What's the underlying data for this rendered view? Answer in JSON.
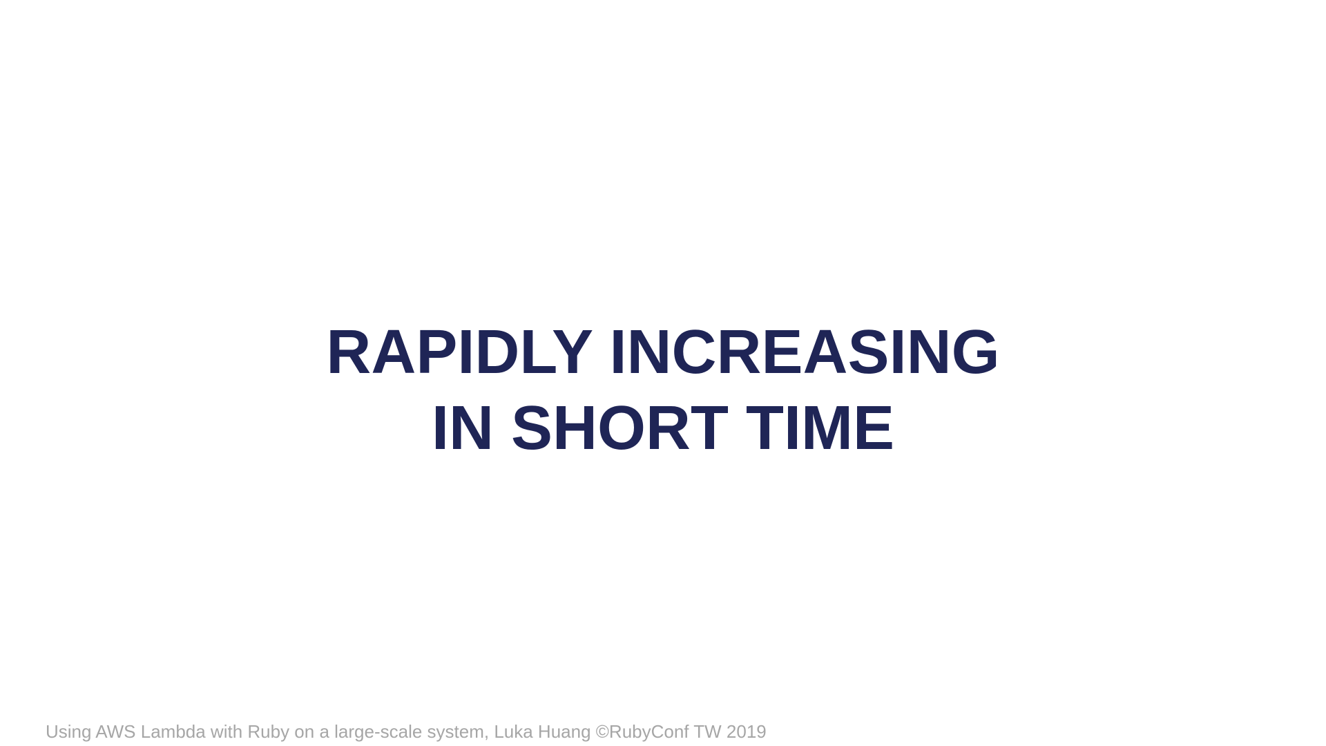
{
  "slide": {
    "title_lines": [
      "RAPIDLY INCREASING",
      "IN SHORT TIME"
    ],
    "footer_text": "Using AWS Lambda with Ruby on a large-scale system, Luka Huang ©RubyConf TW 2019"
  },
  "colors": {
    "background": "#ffffff",
    "title": "#1f2556",
    "footer": "#a6a6a6"
  }
}
